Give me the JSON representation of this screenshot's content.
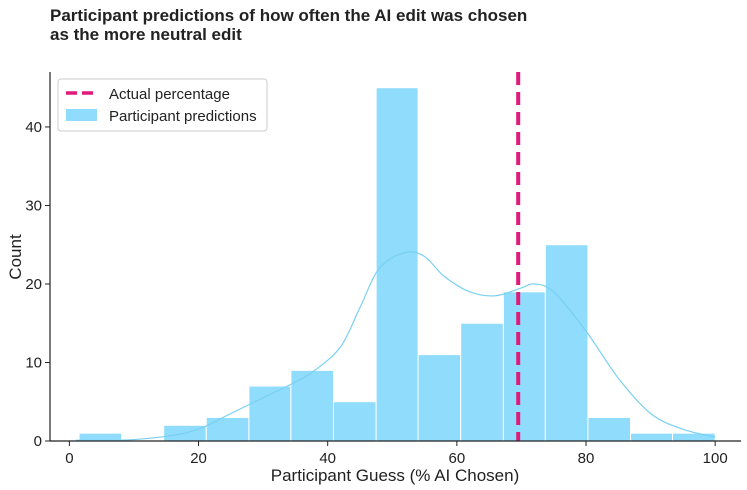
{
  "title": "Participant predictions of how often the AI edit was chosen\nas the more neutral edit",
  "chart_data": {
    "type": "histogram",
    "title": "Participant predictions of how often the AI edit was chosen as the more neutral edit",
    "xlabel": "Participant Guess (% AI Chosen)",
    "ylabel": "Count",
    "xlim": [
      -3,
      104
    ],
    "ylim": [
      0,
      47
    ],
    "xticks": [
      0,
      20,
      40,
      60,
      80,
      100
    ],
    "yticks": [
      0,
      10,
      20,
      30,
      40
    ],
    "bin_edges": [
      1.5,
      8.1,
      14.6,
      21.2,
      27.8,
      34.3,
      40.9,
      47.5,
      54.0,
      60.6,
      67.2,
      73.7,
      80.3,
      86.9,
      93.4,
      100.0
    ],
    "counts": [
      1,
      0,
      2,
      3,
      7,
      9,
      5,
      45,
      11,
      15,
      19,
      25,
      3,
      1,
      1
    ],
    "kde": [
      [
        1,
        0.1
      ],
      [
        8,
        0.1
      ],
      [
        15,
        0.6
      ],
      [
        20,
        1.5
      ],
      [
        25,
        3.5
      ],
      [
        30,
        5.5
      ],
      [
        35,
        7.5
      ],
      [
        38,
        9
      ],
      [
        42,
        12
      ],
      [
        45,
        17
      ],
      [
        48,
        22
      ],
      [
        52,
        24
      ],
      [
        55,
        23.5
      ],
      [
        58,
        21
      ],
      [
        62,
        19
      ],
      [
        66,
        18.5
      ],
      [
        70,
        19.5
      ],
      [
        72,
        20
      ],
      [
        75,
        19
      ],
      [
        80,
        14
      ],
      [
        85,
        8
      ],
      [
        90,
        3.5
      ],
      [
        95,
        1.5
      ],
      [
        100,
        0.5
      ]
    ],
    "reference_line": {
      "label": "Actual percentage",
      "x": 69.5,
      "color": "#e0197a",
      "style": "dashed"
    },
    "bar_color": "#8fdcfc",
    "kde_color": "#7ad0f2",
    "legend": {
      "position": "top-left",
      "entries": [
        {
          "label": "Actual percentage",
          "kind": "dashed-line",
          "color": "#e0197a"
        },
        {
          "label": "Participant predictions",
          "kind": "patch",
          "color": "#8fdcfc"
        }
      ]
    }
  }
}
